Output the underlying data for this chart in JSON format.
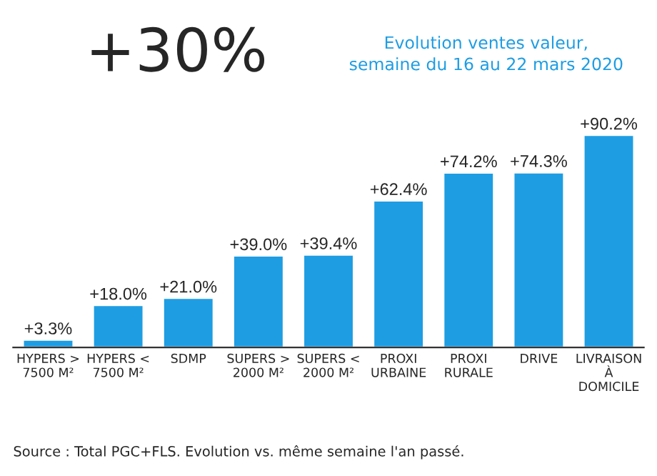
{
  "chart_data": {
    "type": "bar",
    "title": "+30%",
    "subtitle": "Evolution ventes valeur,\nsemaine du 16 au 22 mars 2020",
    "categories": [
      "HYPERS >\n7500 M²",
      "HYPERS <\n7500 M²",
      "SDMP",
      "SUPERS >\n2000 M²",
      "SUPERS <\n2000 M²",
      "PROXI\nURBAINE",
      "PROXI\nRURALE",
      "DRIVE",
      "LIVRAISON\nÀ\nDOMICILE"
    ],
    "values": [
      3.3,
      18.0,
      21.0,
      39.0,
      39.4,
      62.4,
      74.2,
      74.3,
      90.2
    ],
    "value_labels": [
      "+3.3%",
      "+18.0%",
      "+21.0%",
      "+39.0%",
      "+39.4%",
      "+62.4%",
      "+74.2%",
      "+74.3%",
      "+90.2%"
    ],
    "color": "#1e9de3",
    "annotations": [
      "Source : Total PGC+FLS. Evolution vs. même semaine l'an passé."
    ]
  }
}
